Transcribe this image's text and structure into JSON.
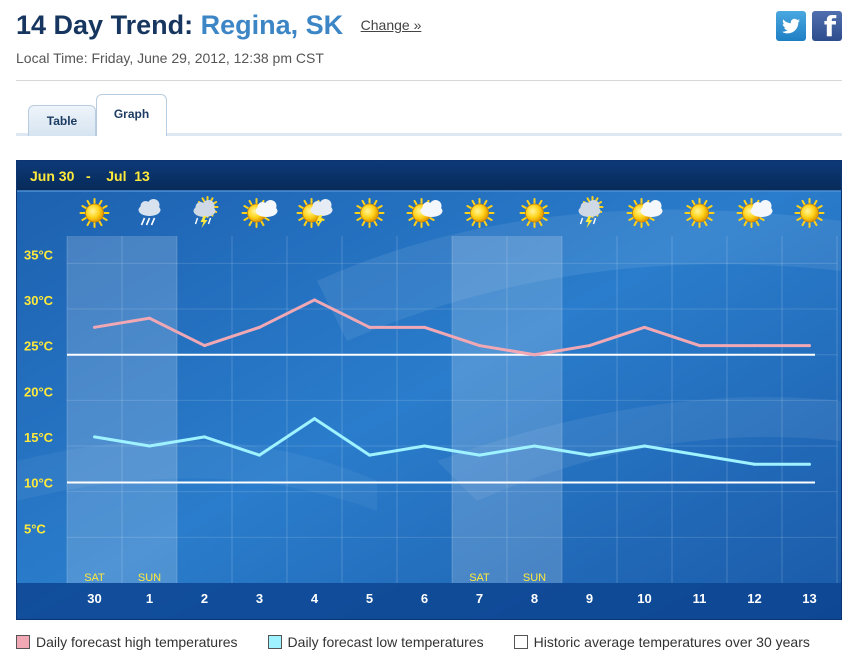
{
  "header": {
    "title_prefix": "14 Day Trend:",
    "city": "Regina, SK",
    "change_label": "Change »",
    "local_time": "Local Time: Friday, June 29, 2012, 12:38 pm CST"
  },
  "tabs": [
    {
      "label": "Table",
      "active": false
    },
    {
      "label": "Graph",
      "active": true
    }
  ],
  "chart_data": {
    "type": "line",
    "title": "Jun 30   -    Jul  13",
    "x": [
      "30",
      "1",
      "2",
      "3",
      "4",
      "5",
      "6",
      "7",
      "8",
      "9",
      "10",
      "11",
      "12",
      "13"
    ],
    "weekday_labels": [
      "SAT",
      "SUN",
      "",
      "",
      "",
      "",
      "",
      "SAT",
      "SUN",
      "",
      "",
      "",
      "",
      ""
    ],
    "weekend_days": [
      "30",
      "1",
      "7",
      "8"
    ],
    "icons": [
      "sun-icon",
      "rain-cloud-icon",
      "thunderstorm-icon",
      "sun-cloud-icon",
      "sun-storm-icon",
      "sun-icon",
      "sun-cloud-icon",
      "sun-icon",
      "sun-icon",
      "thunderstorm-icon",
      "sun-cloud-icon",
      "sun-icon",
      "sun-cloud-icon",
      "sun-icon"
    ],
    "series": [
      {
        "name": "Daily forecast high temperatures",
        "color": "#f0a8b4",
        "values": [
          28,
          29,
          26,
          28,
          31,
          28,
          28,
          26,
          25,
          26,
          28,
          26,
          26,
          26
        ]
      },
      {
        "name": "Daily forecast low temperatures",
        "color": "#9ff2ff",
        "values": [
          16,
          15,
          16,
          14,
          18,
          14,
          15,
          14,
          15,
          14,
          15,
          14,
          13,
          13
        ]
      }
    ],
    "historic": {
      "name": "Historic average temperatures over 30 years",
      "color": "#ffffff",
      "high": 25,
      "low": 11
    },
    "y_ticks": [
      "5°C",
      "10°C",
      "15°C",
      "20°C",
      "25°C",
      "30°C",
      "35°C"
    ],
    "y_tick_values": [
      5,
      10,
      15,
      20,
      25,
      30,
      35
    ],
    "ylim": [
      0,
      38
    ],
    "grid": true,
    "legend_position": "bottom"
  },
  "colors": {
    "chart_bg": "#1a66b8",
    "title_bar": "#0a2f64",
    "label_yellow": "#ffe93a"
  }
}
